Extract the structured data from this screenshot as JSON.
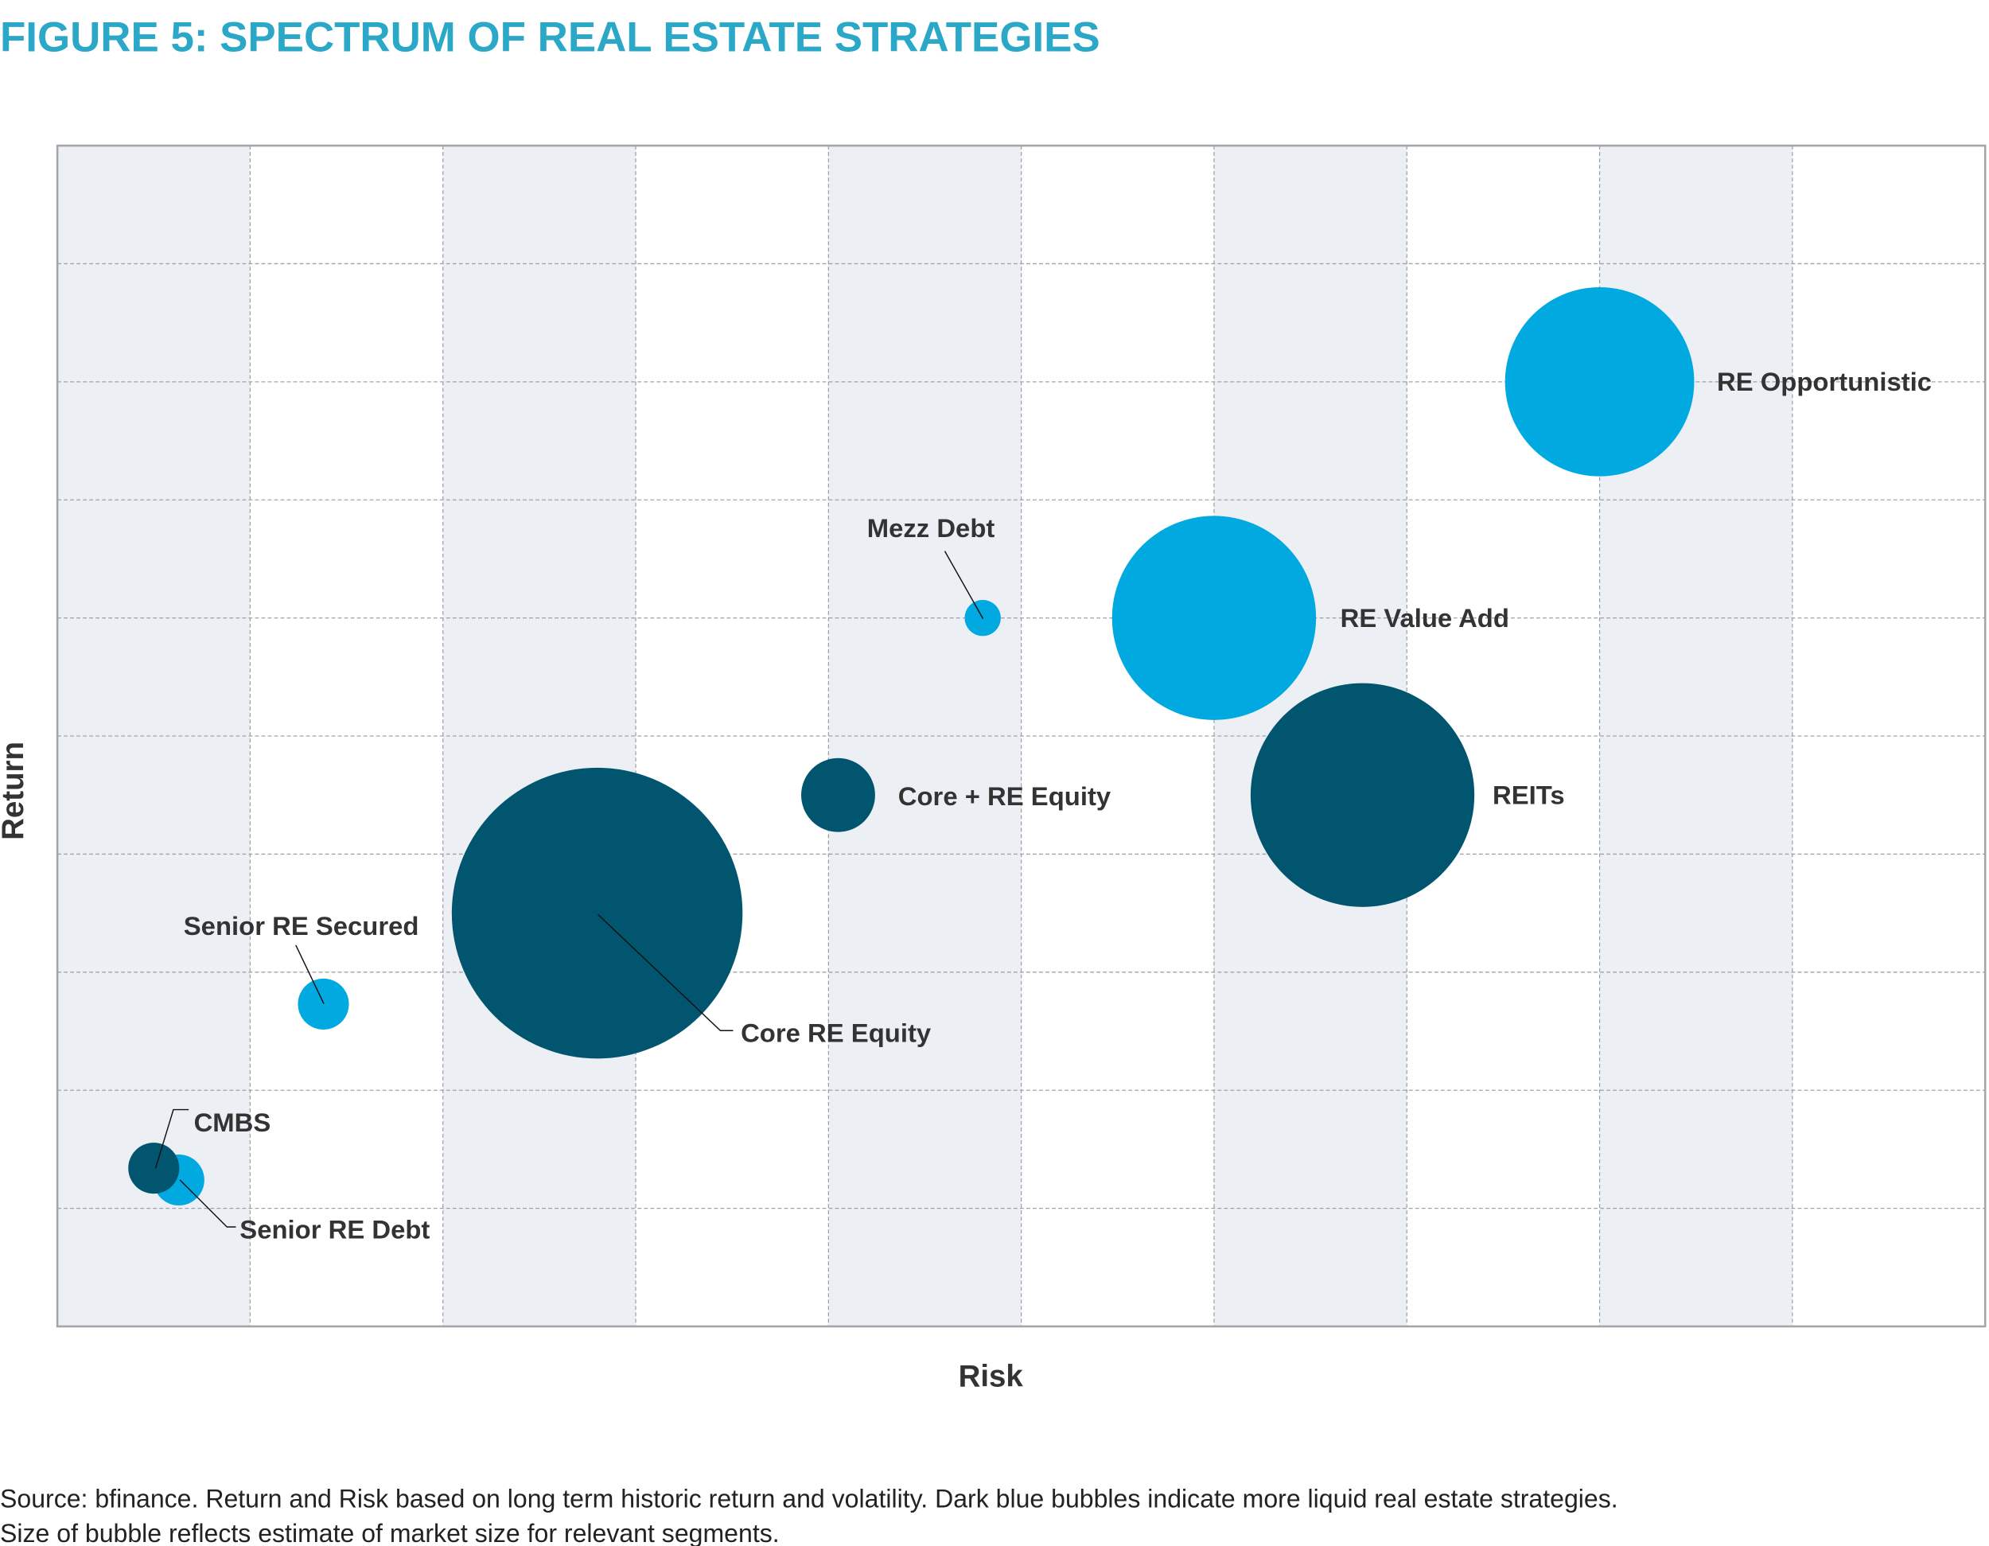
{
  "title": "FIGURE 5: SPECTRUM OF REAL ESTATE STRATEGIES",
  "chart_data": {
    "type": "bubble",
    "title": "FIGURE 5: SPECTRUM OF REAL ESTATE STRATEGIES",
    "xlabel": "Risk",
    "ylabel": "Return",
    "xlim": [
      0,
      10
    ],
    "ylim": [
      0,
      10
    ],
    "grid": true,
    "tick_labels_shown": false,
    "colors": {
      "less_liquid": "#00a9e0",
      "more_liquid": "#02556f",
      "band": "#eceff4",
      "grid": "#9ea3aa"
    },
    "points": [
      {
        "label": "RE Opportunistic",
        "x": 8.0,
        "y": 8.0,
        "size": 55,
        "liquid": false
      },
      {
        "label": "RE Value Add",
        "x": 6.0,
        "y": 6.0,
        "size": 64,
        "liquid": false
      },
      {
        "label": "Mezz Debt",
        "x": 4.8,
        "y": 6.0,
        "size": 2,
        "liquid": false
      },
      {
        "label": "REITs",
        "x": 6.77,
        "y": 4.5,
        "size": 77,
        "liquid": true
      },
      {
        "label": "Core + RE Equity",
        "x": 4.05,
        "y": 4.5,
        "size": 8.4,
        "liquid": true
      },
      {
        "label": "Core RE Equity",
        "x": 2.8,
        "y": 3.5,
        "size": 130,
        "liquid": true
      },
      {
        "label": "Senior RE Secured",
        "x": 1.38,
        "y": 2.73,
        "size": 4,
        "liquid": false
      },
      {
        "label": "Senior RE Debt",
        "x": 0.63,
        "y": 1.24,
        "size": 4,
        "liquid": false
      },
      {
        "label": "CMBS",
        "x": 0.5,
        "y": 1.34,
        "size": 4,
        "liquid": true
      }
    ]
  },
  "footer": {
    "line1": "Source: bfinance. Return and Risk based on long term historic return and volatility. Dark blue bubbles indicate more liquid real estate strategies.",
    "line2": "Size of bubble reflects estimate of market size for relevant segments."
  }
}
